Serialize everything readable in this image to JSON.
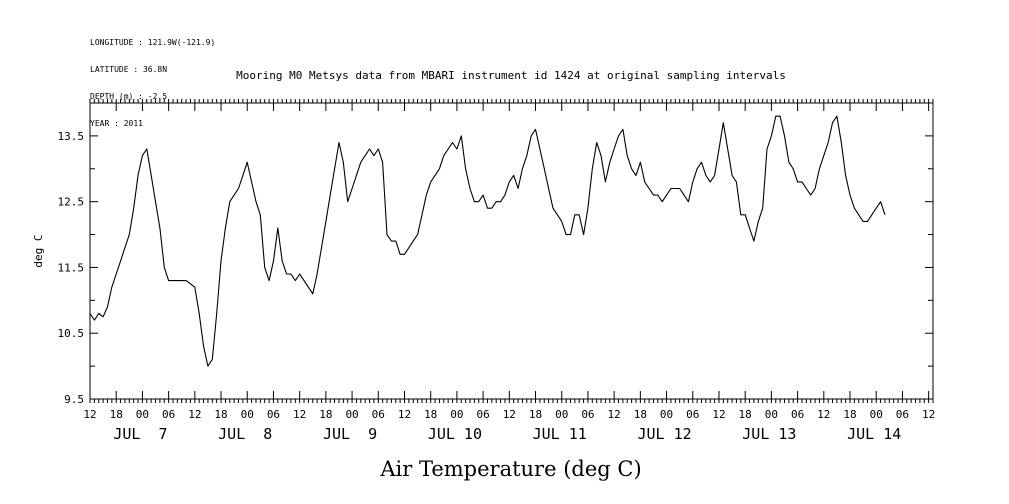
{
  "header": {
    "meta_lines": [
      "LONGITUDE : 121.9W(-121.9)",
      "LATITUDE : 36.8N",
      "DEPTH (m) : -2.5",
      "YEAR : 2011"
    ]
  },
  "chart_data": {
    "type": "line",
    "title": "Mooring M0 Metsys data from MBARI instrument id 1424 at original sampling intervals",
    "xlabel": "Air Temperature (deg C)",
    "ylabel": "deg C",
    "ylim": [
      9.5,
      14.0
    ],
    "yticks": [
      "9.5",
      "10.5",
      "11.5",
      "12.5",
      "13.5"
    ],
    "xlim": [
      "2011-07-06 12:00",
      "2011-07-14 13:00"
    ],
    "xtick_labels": [
      "12",
      "18",
      "00",
      "06",
      "12",
      "18",
      "00",
      "06",
      "12",
      "18",
      "00",
      "06",
      "12",
      "18",
      "00",
      "06",
      "12",
      "18",
      "00",
      "06",
      "12",
      "18",
      "00",
      "06",
      "12",
      "18",
      "00",
      "06",
      "12",
      "18",
      "00",
      "06",
      "12"
    ],
    "day_labels": [
      "JUL  7",
      "JUL  8",
      "JUL  9",
      "JUL 10",
      "JUL 11",
      "JUL 12",
      "JUL 13",
      "JUL 14"
    ],
    "grid": false,
    "series": [
      {
        "color": "#000000",
        "points": [
          [
            "07-06 12:00",
            10.8
          ],
          [
            "07-06 13:00",
            10.7
          ],
          [
            "07-06 14:00",
            10.8
          ],
          [
            "07-06 15:00",
            10.75
          ],
          [
            "07-06 16:00",
            10.9
          ],
          [
            "07-06 17:00",
            11.2
          ],
          [
            "07-06 18:00",
            11.4
          ],
          [
            "07-06 19:00",
            11.6
          ],
          [
            "07-06 20:00",
            11.8
          ],
          [
            "07-06 21:00",
            12.0
          ],
          [
            "07-06 22:00",
            12.4
          ],
          [
            "07-06 23:00",
            12.9
          ],
          [
            "07-07 00:00",
            13.2
          ],
          [
            "07-07 01:00",
            13.3
          ],
          [
            "07-07 02:00",
            12.9
          ],
          [
            "07-07 03:00",
            12.5
          ],
          [
            "07-07 04:00",
            12.1
          ],
          [
            "07-07 05:00",
            11.5
          ],
          [
            "07-07 06:00",
            11.3
          ],
          [
            "07-07 08:00",
            11.3
          ],
          [
            "07-07 10:00",
            11.3
          ],
          [
            "07-07 12:00",
            11.2
          ],
          [
            "07-07 13:00",
            10.8
          ],
          [
            "07-07 14:00",
            10.3
          ],
          [
            "07-07 15:00",
            10.0
          ],
          [
            "07-07 16:00",
            10.1
          ],
          [
            "07-07 17:00",
            10.8
          ],
          [
            "07-07 18:00",
            11.6
          ],
          [
            "07-07 19:00",
            12.1
          ],
          [
            "07-07 20:00",
            12.5
          ],
          [
            "07-07 21:00",
            12.6
          ],
          [
            "07-07 22:00",
            12.7
          ],
          [
            "07-07 23:00",
            12.9
          ],
          [
            "07-08 00:00",
            13.1
          ],
          [
            "07-08 01:00",
            12.8
          ],
          [
            "07-08 02:00",
            12.5
          ],
          [
            "07-08 03:00",
            12.3
          ],
          [
            "07-08 04:00",
            11.5
          ],
          [
            "07-08 05:00",
            11.3
          ],
          [
            "07-08 06:00",
            11.6
          ],
          [
            "07-08 07:00",
            12.1
          ],
          [
            "07-08 08:00",
            11.6
          ],
          [
            "07-08 09:00",
            11.4
          ],
          [
            "07-08 10:00",
            11.4
          ],
          [
            "07-08 11:00",
            11.3
          ],
          [
            "07-08 12:00",
            11.4
          ],
          [
            "07-08 13:00",
            11.3
          ],
          [
            "07-08 14:00",
            11.2
          ],
          [
            "07-08 15:00",
            11.1
          ],
          [
            "07-08 16:00",
            11.4
          ],
          [
            "07-08 17:00",
            11.8
          ],
          [
            "07-08 18:00",
            12.2
          ],
          [
            "07-08 19:00",
            12.6
          ],
          [
            "07-08 20:00",
            13.0
          ],
          [
            "07-08 21:00",
            13.4
          ],
          [
            "07-08 22:00",
            13.1
          ],
          [
            "07-08 23:00",
            12.5
          ],
          [
            "07-09 00:00",
            12.7
          ],
          [
            "07-09 01:00",
            12.9
          ],
          [
            "07-09 02:00",
            13.1
          ],
          [
            "07-09 03:00",
            13.2
          ],
          [
            "07-09 04:00",
            13.3
          ],
          [
            "07-09 05:00",
            13.2
          ],
          [
            "07-09 06:00",
            13.3
          ],
          [
            "07-09 07:00",
            13.1
          ],
          [
            "07-09 08:00",
            12.0
          ],
          [
            "07-09 09:00",
            11.9
          ],
          [
            "07-09 10:00",
            11.9
          ],
          [
            "07-09 11:00",
            11.7
          ],
          [
            "07-09 12:00",
            11.7
          ],
          [
            "07-09 13:00",
            11.8
          ],
          [
            "07-09 14:00",
            11.9
          ],
          [
            "07-09 15:00",
            12.0
          ],
          [
            "07-09 16:00",
            12.3
          ],
          [
            "07-09 17:00",
            12.6
          ],
          [
            "07-09 18:00",
            12.8
          ],
          [
            "07-09 19:00",
            12.9
          ],
          [
            "07-09 20:00",
            13.0
          ],
          [
            "07-09 21:00",
            13.2
          ],
          [
            "07-09 22:00",
            13.3
          ],
          [
            "07-09 23:00",
            13.4
          ],
          [
            "07-10 00:00",
            13.3
          ],
          [
            "07-10 01:00",
            13.5
          ],
          [
            "07-10 02:00",
            13.0
          ],
          [
            "07-10 03:00",
            12.7
          ],
          [
            "07-10 04:00",
            12.5
          ],
          [
            "07-10 05:00",
            12.5
          ],
          [
            "07-10 06:00",
            12.6
          ],
          [
            "07-10 07:00",
            12.4
          ],
          [
            "07-10 08:00",
            12.4
          ],
          [
            "07-10 09:00",
            12.5
          ],
          [
            "07-10 10:00",
            12.5
          ],
          [
            "07-10 11:00",
            12.6
          ],
          [
            "07-10 12:00",
            12.8
          ],
          [
            "07-10 13:00",
            12.9
          ],
          [
            "07-10 14:00",
            12.7
          ],
          [
            "07-10 15:00",
            13.0
          ],
          [
            "07-10 16:00",
            13.2
          ],
          [
            "07-10 17:00",
            13.5
          ],
          [
            "07-10 18:00",
            13.6
          ],
          [
            "07-10 19:00",
            13.3
          ],
          [
            "07-10 20:00",
            13.0
          ],
          [
            "07-10 21:00",
            12.7
          ],
          [
            "07-10 22:00",
            12.4
          ],
          [
            "07-10 23:00",
            12.3
          ],
          [
            "07-11 00:00",
            12.2
          ],
          [
            "07-11 01:00",
            12.0
          ],
          [
            "07-11 02:00",
            12.0
          ],
          [
            "07-11 03:00",
            12.3
          ],
          [
            "07-11 04:00",
            12.3
          ],
          [
            "07-11 05:00",
            12.0
          ],
          [
            "07-11 06:00",
            12.4
          ],
          [
            "07-11 07:00",
            13.0
          ],
          [
            "07-11 08:00",
            13.4
          ],
          [
            "07-11 09:00",
            13.2
          ],
          [
            "07-11 10:00",
            12.8
          ],
          [
            "07-11 11:00",
            13.1
          ],
          [
            "07-11 12:00",
            13.3
          ],
          [
            "07-11 13:00",
            13.5
          ],
          [
            "07-11 14:00",
            13.6
          ],
          [
            "07-11 15:00",
            13.2
          ],
          [
            "07-11 16:00",
            13.0
          ],
          [
            "07-11 17:00",
            12.9
          ],
          [
            "07-11 18:00",
            13.1
          ],
          [
            "07-11 19:00",
            12.8
          ],
          [
            "07-11 20:00",
            12.7
          ],
          [
            "07-11 21:00",
            12.6
          ],
          [
            "07-11 22:00",
            12.6
          ],
          [
            "07-11 23:00",
            12.5
          ],
          [
            "07-12 00:00",
            12.6
          ],
          [
            "07-12 01:00",
            12.7
          ],
          [
            "07-12 02:00",
            12.7
          ],
          [
            "07-12 03:00",
            12.7
          ],
          [
            "07-12 04:00",
            12.6
          ],
          [
            "07-12 05:00",
            12.5
          ],
          [
            "07-12 06:00",
            12.8
          ],
          [
            "07-12 07:00",
            13.0
          ],
          [
            "07-12 08:00",
            13.1
          ],
          [
            "07-12 09:00",
            12.9
          ],
          [
            "07-12 10:00",
            12.8
          ],
          [
            "07-12 11:00",
            12.9
          ],
          [
            "07-12 12:00",
            13.3
          ],
          [
            "07-12 13:00",
            13.7
          ],
          [
            "07-12 14:00",
            13.3
          ],
          [
            "07-12 15:00",
            12.9
          ],
          [
            "07-12 16:00",
            12.8
          ],
          [
            "07-12 17:00",
            12.3
          ],
          [
            "07-12 18:00",
            12.3
          ],
          [
            "07-12 19:00",
            12.1
          ],
          [
            "07-12 20:00",
            11.9
          ],
          [
            "07-12 21:00",
            12.2
          ],
          [
            "07-12 22:00",
            12.4
          ],
          [
            "07-12 23:00",
            13.3
          ],
          [
            "07-13 00:00",
            13.5
          ],
          [
            "07-13 01:00",
            13.8
          ],
          [
            "07-13 02:00",
            13.8
          ],
          [
            "07-13 03:00",
            13.5
          ],
          [
            "07-13 04:00",
            13.1
          ],
          [
            "07-13 05:00",
            13.0
          ],
          [
            "07-13 06:00",
            12.8
          ],
          [
            "07-13 07:00",
            12.8
          ],
          [
            "07-13 08:00",
            12.7
          ],
          [
            "07-13 09:00",
            12.6
          ],
          [
            "07-13 10:00",
            12.7
          ],
          [
            "07-13 11:00",
            13.0
          ],
          [
            "07-13 12:00",
            13.2
          ],
          [
            "07-13 13:00",
            13.4
          ],
          [
            "07-13 14:00",
            13.7
          ],
          [
            "07-13 15:00",
            13.8
          ],
          [
            "07-13 16:00",
            13.4
          ],
          [
            "07-13 17:00",
            12.9
          ],
          [
            "07-13 18:00",
            12.6
          ],
          [
            "07-13 19:00",
            12.4
          ],
          [
            "07-13 20:00",
            12.3
          ],
          [
            "07-13 21:00",
            12.2
          ],
          [
            "07-13 22:00",
            12.2
          ],
          [
            "07-13 23:00",
            12.3
          ],
          [
            "07-14 00:00",
            12.4
          ],
          [
            "07-14 01:00",
            12.5
          ],
          [
            "07-14 02:00",
            12.3
          ]
        ]
      }
    ]
  }
}
